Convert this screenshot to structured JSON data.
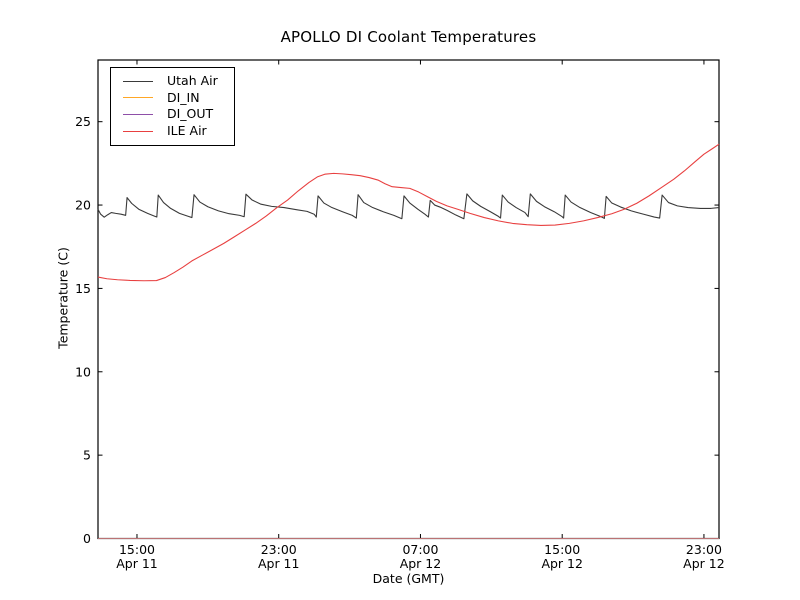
{
  "figure": {
    "background": "#ffffff",
    "frame_color": "#000000"
  },
  "chart_data": {
    "type": "line",
    "title": "APOLLO DI Coolant Temperatures",
    "xlabel": "Date (GMT)",
    "ylabel": "Temperature (C)",
    "x_units": "hours since Apr 11 00:00 GMT (read from tick labels)",
    "xlim": [
      12.8,
      47.85
    ],
    "ylim": [
      0,
      28.7
    ],
    "grid": false,
    "tick_direction": "in",
    "legend_position": "upper left",
    "x_ticks": [
      {
        "t": 15,
        "time": "15:00",
        "date": "Apr 11"
      },
      {
        "t": 23,
        "time": "23:00",
        "date": "Apr 11"
      },
      {
        "t": 31,
        "time": "07:00",
        "date": "Apr 12"
      },
      {
        "t": 39,
        "time": "15:00",
        "date": "Apr 12"
      },
      {
        "t": 47,
        "time": "23:00",
        "date": "Apr 12"
      }
    ],
    "y_ticks": [
      {
        "v": 0,
        "label": "0"
      },
      {
        "v": 5,
        "label": "5"
      },
      {
        "v": 10,
        "label": "10"
      },
      {
        "v": 15,
        "label": "15"
      },
      {
        "v": 20,
        "label": "20"
      },
      {
        "v": 25,
        "label": "25"
      }
    ],
    "series": [
      {
        "name": "Utah Air",
        "color": "#3a3a3a",
        "opacity": 1,
        "points": [
          [
            12.8,
            19.75
          ],
          [
            12.95,
            19.45
          ],
          [
            13.15,
            19.27
          ],
          [
            13.35,
            19.42
          ],
          [
            13.55,
            19.55
          ],
          [
            13.8,
            19.5
          ],
          [
            14.1,
            19.45
          ],
          [
            14.3,
            19.4
          ],
          [
            14.36,
            19.38
          ],
          [
            14.44,
            20.45
          ],
          [
            14.7,
            20.1
          ],
          [
            15.1,
            19.75
          ],
          [
            15.6,
            19.5
          ],
          [
            16.0,
            19.33
          ],
          [
            16.12,
            19.28
          ],
          [
            16.2,
            20.6
          ],
          [
            16.5,
            20.15
          ],
          [
            16.9,
            19.8
          ],
          [
            17.4,
            19.5
          ],
          [
            17.9,
            19.32
          ],
          [
            18.1,
            19.25
          ],
          [
            18.22,
            20.62
          ],
          [
            18.55,
            20.18
          ],
          [
            19.0,
            19.9
          ],
          [
            19.6,
            19.65
          ],
          [
            20.2,
            19.48
          ],
          [
            20.8,
            19.38
          ],
          [
            21.05,
            19.3
          ],
          [
            21.15,
            20.65
          ],
          [
            21.5,
            20.3
          ],
          [
            22.0,
            20.05
          ],
          [
            22.6,
            19.92
          ],
          [
            23.3,
            19.85
          ],
          [
            24.0,
            19.72
          ],
          [
            24.6,
            19.62
          ],
          [
            25.0,
            19.45
          ],
          [
            25.12,
            19.28
          ],
          [
            25.22,
            20.55
          ],
          [
            25.55,
            20.12
          ],
          [
            26.0,
            19.85
          ],
          [
            26.6,
            19.6
          ],
          [
            27.15,
            19.38
          ],
          [
            27.38,
            19.22
          ],
          [
            27.48,
            20.62
          ],
          [
            27.8,
            20.15
          ],
          [
            28.3,
            19.85
          ],
          [
            28.9,
            19.6
          ],
          [
            29.5,
            19.38
          ],
          [
            29.95,
            19.18
          ],
          [
            30.07,
            20.55
          ],
          [
            30.4,
            20.12
          ],
          [
            30.85,
            19.75
          ],
          [
            31.25,
            19.45
          ],
          [
            31.45,
            19.28
          ],
          [
            31.55,
            20.28
          ],
          [
            31.8,
            20.0
          ],
          [
            32.1,
            19.88
          ],
          [
            32.5,
            19.68
          ],
          [
            33.0,
            19.4
          ],
          [
            33.45,
            19.18
          ],
          [
            33.62,
            20.67
          ],
          [
            33.95,
            20.25
          ],
          [
            34.4,
            19.92
          ],
          [
            34.95,
            19.6
          ],
          [
            35.4,
            19.32
          ],
          [
            35.52,
            19.22
          ],
          [
            35.62,
            20.6
          ],
          [
            35.95,
            20.18
          ],
          [
            36.4,
            19.85
          ],
          [
            36.9,
            19.55
          ],
          [
            37.08,
            19.3
          ],
          [
            37.2,
            20.67
          ],
          [
            37.55,
            20.22
          ],
          [
            38.0,
            19.9
          ],
          [
            38.55,
            19.6
          ],
          [
            39.0,
            19.3
          ],
          [
            39.08,
            19.22
          ],
          [
            39.17,
            20.6
          ],
          [
            39.5,
            20.18
          ],
          [
            40.0,
            19.85
          ],
          [
            40.6,
            19.55
          ],
          [
            41.2,
            19.3
          ],
          [
            41.38,
            19.2
          ],
          [
            41.48,
            20.52
          ],
          [
            41.8,
            20.12
          ],
          [
            42.3,
            19.88
          ],
          [
            42.9,
            19.65
          ],
          [
            43.6,
            19.45
          ],
          [
            44.2,
            19.28
          ],
          [
            44.5,
            19.22
          ],
          [
            44.64,
            20.6
          ],
          [
            45.0,
            20.15
          ],
          [
            45.5,
            19.95
          ],
          [
            46.1,
            19.85
          ],
          [
            46.8,
            19.8
          ],
          [
            47.4,
            19.8
          ],
          [
            47.85,
            19.85
          ]
        ]
      },
      {
        "name": "DI_IN",
        "color": "#ffa726",
        "opacity": 1,
        "points": [
          [
            12.8,
            0
          ],
          [
            47.85,
            0
          ]
        ]
      },
      {
        "name": "DI_OUT",
        "color": "#8e4fa8",
        "opacity": 0.6,
        "points": [
          [
            12.8,
            0
          ],
          [
            47.85,
            0
          ]
        ]
      },
      {
        "name": "ILE Air",
        "color": "#e84040",
        "opacity": 1,
        "points": [
          [
            12.8,
            15.68
          ],
          [
            13.3,
            15.58
          ],
          [
            13.9,
            15.52
          ],
          [
            14.6,
            15.48
          ],
          [
            15.4,
            15.46
          ],
          [
            16.1,
            15.47
          ],
          [
            16.6,
            15.65
          ],
          [
            17.1,
            15.95
          ],
          [
            17.6,
            16.28
          ],
          [
            18.1,
            16.65
          ],
          [
            18.7,
            17.0
          ],
          [
            19.3,
            17.35
          ],
          [
            19.9,
            17.7
          ],
          [
            20.5,
            18.1
          ],
          [
            21.1,
            18.5
          ],
          [
            21.7,
            18.9
          ],
          [
            22.3,
            19.35
          ],
          [
            22.9,
            19.85
          ],
          [
            23.5,
            20.3
          ],
          [
            24.1,
            20.85
          ],
          [
            24.7,
            21.35
          ],
          [
            25.2,
            21.7
          ],
          [
            25.6,
            21.85
          ],
          [
            26.1,
            21.9
          ],
          [
            26.6,
            21.87
          ],
          [
            27.1,
            21.82
          ],
          [
            27.6,
            21.76
          ],
          [
            28.1,
            21.65
          ],
          [
            28.6,
            21.5
          ],
          [
            29.0,
            21.28
          ],
          [
            29.4,
            21.1
          ],
          [
            29.9,
            21.05
          ],
          [
            30.4,
            21.0
          ],
          [
            30.9,
            20.78
          ],
          [
            31.4,
            20.5
          ],
          [
            31.9,
            20.22
          ],
          [
            32.5,
            19.95
          ],
          [
            33.1,
            19.75
          ],
          [
            33.8,
            19.5
          ],
          [
            34.6,
            19.25
          ],
          [
            35.4,
            19.05
          ],
          [
            36.2,
            18.9
          ],
          [
            37.0,
            18.82
          ],
          [
            37.8,
            18.78
          ],
          [
            38.6,
            18.8
          ],
          [
            39.4,
            18.9
          ],
          [
            40.2,
            19.05
          ],
          [
            41.0,
            19.25
          ],
          [
            41.8,
            19.48
          ],
          [
            42.5,
            19.75
          ],
          [
            43.2,
            20.1
          ],
          [
            43.9,
            20.55
          ],
          [
            44.6,
            21.05
          ],
          [
            45.3,
            21.55
          ],
          [
            45.9,
            22.05
          ],
          [
            46.5,
            22.6
          ],
          [
            47.0,
            23.05
          ],
          [
            47.5,
            23.4
          ],
          [
            47.85,
            23.65
          ]
        ]
      }
    ]
  }
}
